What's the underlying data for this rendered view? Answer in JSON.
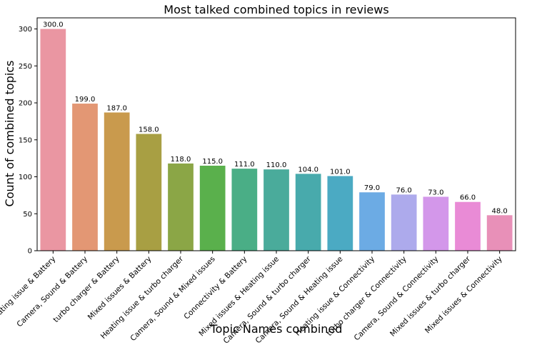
{
  "chart_data": {
    "type": "bar",
    "title": "Most talked combined topics in reviews",
    "xlabel": "Topic Names combined",
    "ylabel": "Count of combined topics",
    "ylim": [
      0,
      315
    ],
    "yticks": [
      0,
      50,
      100,
      150,
      200,
      250,
      300
    ],
    "grid": false,
    "categories": [
      "Heating issue & Battery",
      "Camera, Sound & Battery",
      "turbo charger & Battery",
      "Mixed issues & Battery",
      "Heating issue & turbo charger",
      "Camera, Sound & Mixed issues",
      "Connectivity & Battery",
      "Mixed issues & Heating issue",
      "Camera, Sound & turbo charger",
      "Camera, Sound & Heating issue",
      "Heating issue & Connectivity",
      "turbo charger & Connectivity",
      "Camera, Sound & Connectivity",
      "Mixed issues & turbo charger",
      "Mixed issues & Connectivity"
    ],
    "values": [
      300,
      199,
      187,
      158,
      118,
      115,
      111,
      110,
      104,
      101,
      79,
      76,
      73,
      66,
      48
    ],
    "data_labels": [
      "300.0",
      "199.0",
      "187.0",
      "158.0",
      "118.0",
      "115.0",
      "111.0",
      "110.0",
      "104.0",
      "101.0",
      "79.0",
      "76.0",
      "73.0",
      "66.0",
      "48.0"
    ],
    "colors": [
      "#ea96a2",
      "#e39774",
      "#c99a4d",
      "#a89f43",
      "#8ba646",
      "#5ab04c",
      "#4aae86",
      "#4aab9b",
      "#48aaac",
      "#4baac3",
      "#6cabe4",
      "#adaaec",
      "#d397ea",
      "#e98bd6",
      "#e890b8"
    ]
  }
}
